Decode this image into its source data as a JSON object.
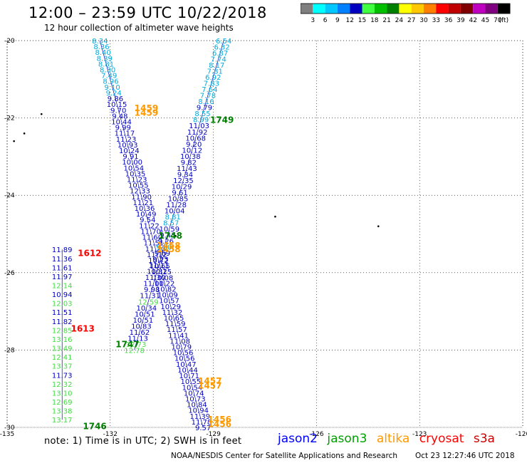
{
  "title": "12:00  –  23:59  UTC  10/22/2018",
  "subtitle": "12 hour collection of altimeter wave heights",
  "colorbar": {
    "colors": [
      "#7f7f7f",
      "#00ffff",
      "#00c8ff",
      "#0080ff",
      "#0000c0",
      "#40ff40",
      "#00c000",
      "#008000",
      "#ffff00",
      "#ffc800",
      "#ff8000",
      "#ff0000",
      "#c00000",
      "#800000",
      "#c000c0",
      "#800080",
      "#000000"
    ],
    "labels": [
      "3",
      "6",
      "9",
      "12",
      "15",
      "18",
      "21",
      "24",
      "27",
      "30",
      "33",
      "36",
      "39",
      "42",
      "45",
      "70"
    ],
    "unit": "(ft)"
  },
  "axes": {
    "lon_ticks": [
      "-135",
      "-132",
      "-129",
      "-126",
      "-123",
      "-120"
    ],
    "lat_ticks": [
      "-20",
      "-22",
      "-24",
      "-26",
      "-28",
      "-30"
    ]
  },
  "tracks": [
    {
      "name": "descending-left",
      "start": [
        -132.3,
        -20.0
      ],
      "end": [
        -129.3,
        -30.0
      ],
      "values": [
        "8.34",
        "8.36",
        "8.40",
        "8.39",
        "8.81",
        "8.30",
        "7.49",
        "8.96",
        "9.10",
        "9.24",
        "9.86",
        "10.15",
        "9.70",
        "9.48",
        "10.44",
        "9.99",
        "11.17",
        "11.23",
        "10.93",
        "10.24",
        "9.91",
        "10.00",
        "10.54",
        "10.35",
        "11.23",
        "10.55",
        "12.33",
        "11.90",
        "11.21",
        "10.36",
        "10.49",
        "9.54",
        "11.22",
        "11.70",
        "11.60",
        "11.51",
        "11.20",
        "11.12",
        "10.72",
        "10.65",
        "10.15",
        "10.08",
        "11.22",
        "10.82",
        "10.09",
        "10.57",
        "10.29",
        "11.32",
        "10.65",
        "11.59",
        "11.57",
        "11.41",
        "11.08",
        "10.79",
        "10.56",
        "10.56",
        "10.47",
        "10.44",
        "10.71",
        "10.55",
        "10.54",
        "10.74",
        "10.73",
        "10.84",
        "10.94",
        "11.39",
        "11.78",
        "9.57"
      ],
      "colors": [
        "c",
        "c",
        "c",
        "c",
        "c",
        "c",
        "c",
        "c",
        "c",
        "c",
        "b",
        "b",
        "b",
        "b",
        "b",
        "b",
        "b",
        "b",
        "b",
        "b",
        "b",
        "b",
        "b",
        "b",
        "b",
        "b",
        "b",
        "b",
        "b",
        "b",
        "b",
        "b",
        "b",
        "b",
        "b",
        "b",
        "b",
        "b",
        "b",
        "b",
        "b",
        "b",
        "b",
        "b",
        "b",
        "b",
        "b",
        "b",
        "b",
        "b",
        "b",
        "b",
        "b",
        "b",
        "b",
        "b",
        "b",
        "b",
        "b",
        "b",
        "b",
        "b",
        "b",
        "b",
        "b",
        "b",
        "b",
        "b"
      ]
    },
    {
      "name": "ascending-right",
      "start": [
        -128.7,
        -20.0
      ],
      "end": [
        -131.3,
        -28.0
      ],
      "values": [
        "6.54",
        "6.32",
        "6.87",
        "7.74",
        "8.17",
        "7.81",
        "6.92",
        "7.83",
        "7.64",
        "7.78",
        "8.16",
        "9.79",
        "8.55",
        "8.99",
        "11.03",
        "11.92",
        "10.68",
        "9.20",
        "10.12",
        "10.38",
        "9.82",
        "11.43",
        "9.34",
        "12.35",
        "10.29",
        "9.61",
        "10.85",
        "11.28",
        "10.04",
        "8.81",
        "8.57",
        "10.59",
        "9.43",
        "9.26",
        "9.00",
        "9.69",
        "9.23",
        "11.11",
        "10.32",
        "11.30",
        "11.00",
        "9.98",
        "11.31",
        "12.59",
        "10.34",
        "10.51",
        "10.51",
        "10.83",
        "11.62",
        "11.13",
        "12.73",
        "12.78"
      ],
      "colors": [
        "c",
        "c",
        "c",
        "c",
        "c",
        "c",
        "c",
        "c",
        "c",
        "c",
        "c",
        "b",
        "c",
        "c",
        "b",
        "b",
        "b",
        "b",
        "b",
        "b",
        "b",
        "b",
        "b",
        "b",
        "b",
        "b",
        "b",
        "b",
        "b",
        "c",
        "c",
        "b",
        "b",
        "b",
        "c",
        "b",
        "b",
        "b",
        "b",
        "b",
        "b",
        "b",
        "b",
        "g",
        "b",
        "b",
        "b",
        "b",
        "b",
        "b",
        "g",
        "g"
      ]
    },
    {
      "name": "far-left",
      "start": [
        -133.4,
        -25.4
      ],
      "end": [
        -133.4,
        -29.8
      ],
      "values": [
        "11.89",
        "11.36",
        "11.61",
        "11.97",
        "12.14",
        "10.94",
        "12.03",
        "11.51",
        "11.82",
        "12.85",
        "13.16",
        "13.49",
        "12.41",
        "13.37",
        "11.73",
        "12.32",
        "13.10",
        "12.69",
        "13.38",
        "13.17"
      ],
      "colors": [
        "b",
        "b",
        "b",
        "b",
        "g",
        "b",
        "g",
        "b",
        "b",
        "g",
        "g",
        "g",
        "g",
        "g",
        "b",
        "g",
        "g",
        "g",
        "g",
        "g"
      ]
    }
  ],
  "track_color_map": {
    "c": "#00aadd",
    "b": "#0000c0",
    "g": "#40dd40"
  },
  "time_labels": [
    {
      "text": "1459",
      "lon": -130.95,
      "lat": -21.75,
      "color": "#ff9900"
    },
    {
      "text": "1459",
      "lon": -130.95,
      "lat": -21.87,
      "color": "#ff9900"
    },
    {
      "text": "1749",
      "lon": -128.75,
      "lat": -22.05,
      "color": "#008000"
    },
    {
      "text": "1748",
      "lon": -130.25,
      "lat": -25.05,
      "color": "#008000"
    },
    {
      "text": "1458",
      "lon": -130.3,
      "lat": -25.3,
      "color": "#ff9900"
    },
    {
      "text": "1458",
      "lon": -130.3,
      "lat": -25.4,
      "color": "#ff9900"
    },
    {
      "text": "1612",
      "lon": -132.6,
      "lat": -25.5,
      "color": "#ff0000"
    },
    {
      "text": "1613",
      "lon": -132.8,
      "lat": -27.45,
      "color": "#ff0000"
    },
    {
      "text": "1747",
      "lon": -131.5,
      "lat": -27.85,
      "color": "#008000"
    },
    {
      "text": "1457",
      "lon": -129.1,
      "lat": -28.8,
      "color": "#ff9900"
    },
    {
      "text": "1457",
      "lon": -129.1,
      "lat": -28.92,
      "color": "#ff9900"
    },
    {
      "text": "1456",
      "lon": -128.82,
      "lat": -29.8,
      "color": "#ff9900"
    },
    {
      "text": "1456",
      "lon": -128.82,
      "lat": -29.92,
      "color": "#ff9900"
    },
    {
      "text": "1746",
      "lon": -132.45,
      "lat": -29.97,
      "color": "#008000"
    }
  ],
  "note": "note:  1) Time is in UTC;  2) SWH is in feet",
  "legend": [
    {
      "label": "jason2",
      "color": "#0000ff"
    },
    {
      "label": "jason3",
      "color": "#00a000"
    },
    {
      "label": "altika",
      "color": "#ff9900"
    },
    {
      "label": "cryosat",
      "color": "#ff0000"
    },
    {
      "label": "s3a",
      "color": "#cc0000"
    }
  ],
  "credit": "NOAA/NESDIS Center for Satellite Applications and Research",
  "timestamp": "Oct 23 12:27:46 UTC 2018"
}
